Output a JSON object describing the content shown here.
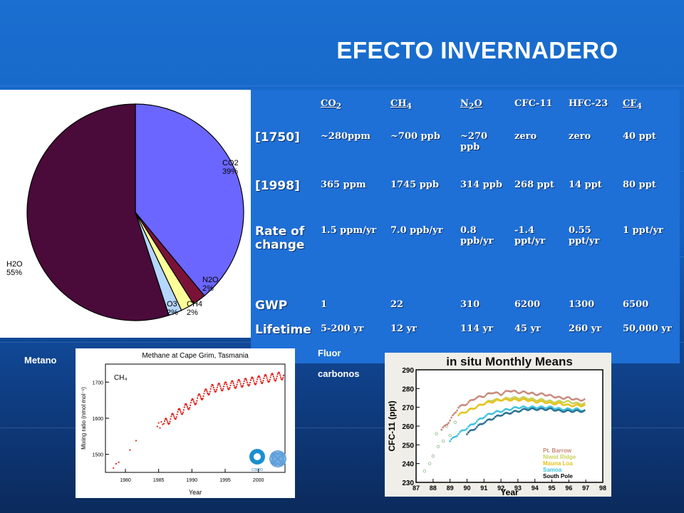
{
  "slide": {
    "title": "EFECTO INVERNADERO",
    "bg_color": "#1565c0"
  },
  "table": {
    "headers": [
      "",
      "CO2",
      "CH4",
      "N2O",
      "CFC-11",
      "HFC-23",
      "CF4"
    ],
    "header_parts": [
      {
        "base": "CO",
        "sub": "2"
      },
      {
        "base": "CH",
        "sub": "4"
      },
      {
        "base": "N",
        "sub": "2",
        "tail": "O"
      },
      {
        "base": "CFC-11"
      },
      {
        "base": "HFC-23"
      },
      {
        "base": "CF",
        "sub": "4"
      }
    ],
    "rows": [
      {
        "label": "[1750]",
        "cells": [
          "~280ppm",
          "~700 ppb",
          "~270 ppb",
          "zero",
          "zero",
          "40 ppt"
        ]
      },
      {
        "label": "[1998]",
        "cells": [
          "365 ppm",
          "1745 ppb",
          "314 ppb",
          "268 ppt",
          "14 ppt",
          "80 ppt"
        ]
      },
      {
        "label": "Rate of change",
        "cells": [
          "1.5 ppm/yr",
          "7.0 ppb/yr",
          "0.8 ppb/yr",
          "-1.4 ppt/yr",
          "0.55 ppt/yr",
          "1 ppt/yr"
        ]
      },
      {
        "label": "GWP",
        "cells": [
          "1",
          "22",
          "310",
          "6200",
          "1300",
          "6500"
        ]
      },
      {
        "label": "Lifetime",
        "cells": [
          "5-200 yr",
          "12 yr",
          "114 yr",
          "45 yr",
          "260 yr",
          "50,000 yr"
        ]
      }
    ]
  },
  "captions": {
    "metano": "Metano",
    "fluor": "Fluor",
    "carbonos": "carbonos"
  },
  "chart_data": [
    {
      "type": "pie",
      "labels": [
        "CO2",
        "H2O",
        "N2O",
        "CH4",
        "O3"
      ],
      "display_labels": [
        {
          "name": "CO2",
          "pct": "39%"
        },
        {
          "name": "H2O",
          "pct": "55%"
        },
        {
          "name": "N2O",
          "pct": "2%"
        },
        {
          "name": "CH4",
          "pct": "2%"
        },
        {
          "name": "O3",
          "pct": "2%"
        }
      ],
      "values": [
        39,
        55,
        2,
        2,
        2
      ],
      "colors": [
        "#6b66ff",
        "#4a0a3a",
        "#7a1238",
        "#ffff99",
        "#b4d6ff"
      ]
    },
    {
      "type": "scatter",
      "title": "Methane at Cape Grim, Tasmania",
      "xlabel": "Year",
      "ylabel": "Mixing ratio (nmol mol⁻¹)",
      "species_label": "CH₄",
      "xlim": [
        1977,
        2004
      ],
      "ylim": [
        1450,
        1750
      ],
      "xticks": [
        1980,
        1985,
        1990,
        1995,
        2000
      ],
      "yticks": [
        1500,
        1600,
        1700
      ],
      "color": "#e0201a",
      "logo_text": "CSIRO",
      "points": [
        [
          1978.2,
          1462
        ],
        [
          1978.6,
          1474
        ],
        [
          1979.0,
          1478
        ],
        [
          1980.7,
          1512
        ],
        [
          1981.6,
          1538
        ],
        [
          1984.8,
          1577
        ],
        [
          1985.0,
          1587
        ],
        [
          1985.2,
          1573
        ],
        [
          1985.4,
          1590
        ],
        [
          1985.6,
          1583
        ]
      ]
    },
    {
      "type": "scatter",
      "title": "in situ Monthly Means",
      "xlabel": "Year",
      "ylabel": "CFC-11 (ppt)",
      "xlim": [
        87,
        98
      ],
      "ylim": [
        230,
        290
      ],
      "xticks": [
        "87",
        "88",
        "89",
        "90",
        "91",
        "92",
        "93",
        "94",
        "95",
        "96",
        "97",
        "98"
      ],
      "yticks": [
        230,
        240,
        250,
        260,
        270,
        280,
        290
      ],
      "series": [
        {
          "name": "Pt. Barrow",
          "color": "#c7897a",
          "values": [
            [
              88.5,
              258
            ],
            [
              89,
              263
            ],
            [
              89.5,
              270
            ],
            [
              90,
              272
            ],
            [
              90.5,
              275
            ],
            [
              91,
              276
            ],
            [
              91.5,
              278
            ],
            [
              92,
              277
            ],
            [
              92.5,
              279
            ],
            [
              93,
              278
            ],
            [
              93.5,
              278
            ],
            [
              94,
              277
            ],
            [
              94.5,
              277
            ],
            [
              95,
              276
            ],
            [
              95.5,
              275
            ],
            [
              96,
              275
            ],
            [
              96.5,
              274
            ],
            [
              97,
              274
            ]
          ]
        },
        {
          "name": "Niwot Ridge",
          "color": "#c8d25a",
          "values": [
            [
              90,
              268
            ],
            [
              90.5,
              270
            ],
            [
              91,
              272
            ],
            [
              91.5,
              274
            ],
            [
              92,
              274
            ],
            [
              92.5,
              275
            ],
            [
              93,
              275
            ],
            [
              93.5,
              275
            ],
            [
              94,
              274
            ],
            [
              94.5,
              274
            ],
            [
              95,
              273
            ],
            [
              95.5,
              273
            ],
            [
              96,
              273
            ],
            [
              96.5,
              272
            ],
            [
              97,
              272
            ]
          ]
        },
        {
          "name": "Mauna Loa",
          "color": "#e6c31b",
          "values": [
            [
              89.5,
              266
            ],
            [
              90,
              268
            ],
            [
              90.5,
              270
            ],
            [
              91,
              272
            ],
            [
              91.5,
              273
            ],
            [
              92,
              274
            ],
            [
              92.5,
              274
            ],
            [
              93,
              274
            ],
            [
              93.5,
              274
            ],
            [
              94,
              273
            ],
            [
              94.5,
              273
            ],
            [
              95,
              272
            ],
            [
              95.5,
              272
            ],
            [
              96,
              271
            ],
            [
              96.5,
              271
            ],
            [
              97,
              271
            ]
          ]
        },
        {
          "name": "Samoa",
          "color": "#3fc3e0",
          "values": [
            [
              89,
              252
            ],
            [
              89.5,
              256
            ],
            [
              90,
              259
            ],
            [
              90.5,
              262
            ],
            [
              91,
              265
            ],
            [
              91.5,
              267
            ],
            [
              92,
              268
            ],
            [
              92.5,
              269
            ],
            [
              93,
              270
            ],
            [
              93.5,
              270
            ],
            [
              94,
              270
            ],
            [
              94.5,
              270
            ],
            [
              95,
              270
            ],
            [
              95.5,
              269
            ],
            [
              96,
              269
            ],
            [
              96.5,
              269
            ],
            [
              97,
              268
            ]
          ]
        },
        {
          "name": "South Pole",
          "color": "#2a6f8f",
          "values": [
            [
              90,
              256
            ],
            [
              90.5,
              259
            ],
            [
              91,
              262
            ],
            [
              91.5,
              264
            ],
            [
              92,
              266
            ],
            [
              92.5,
              267
            ],
            [
              93,
              268
            ],
            [
              93.5,
              269
            ],
            [
              94,
              269
            ],
            [
              94.5,
              269
            ],
            [
              95,
              269
            ],
            [
              95.5,
              268
            ],
            [
              96,
              268
            ],
            [
              96.5,
              268
            ],
            [
              97,
              268
            ]
          ]
        }
      ],
      "early_points": [
        [
          87.5,
          236
        ],
        [
          87.8,
          240
        ],
        [
          88,
          244
        ],
        [
          88.3,
          249
        ],
        [
          88.6,
          252
        ],
        [
          89,
          255
        ],
        [
          88.2,
          256
        ],
        [
          88.8,
          260
        ],
        [
          89.3,
          262
        ]
      ]
    }
  ]
}
